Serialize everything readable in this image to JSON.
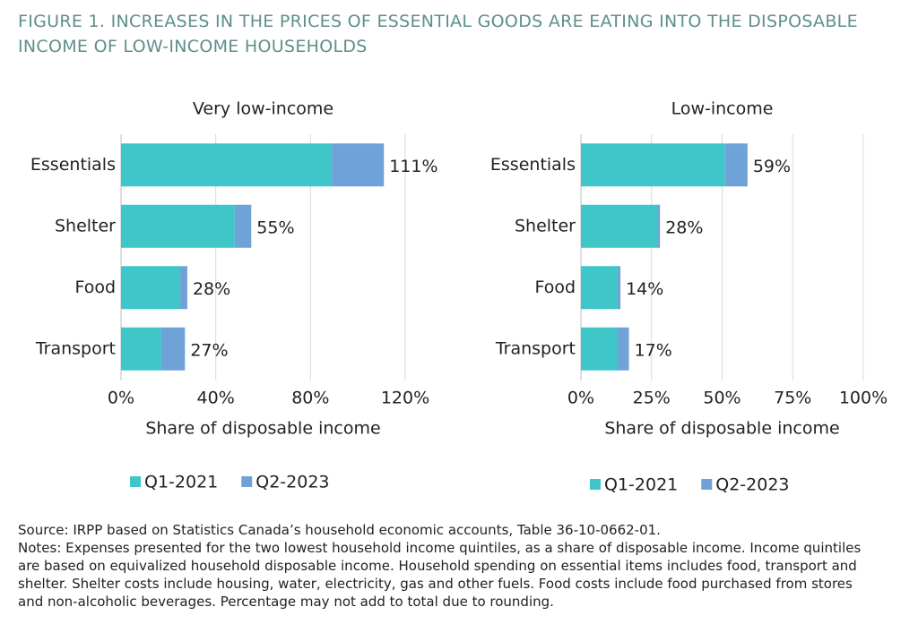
{
  "title": "FIGURE 1. INCREASES IN THE PRICES OF ESSENTIAL GOODS ARE EATING INTO THE DISPOSABLE INCOME OF LOW-INCOME HOUSEHOLDS",
  "chart_data": [
    {
      "type": "stacked-bar-horizontal",
      "title": "Very low-income",
      "categories": [
        "Essentials",
        "Shelter",
        "Food",
        "Transport"
      ],
      "series": [
        {
          "name": "Q1-2021",
          "color": "#3ec6c9",
          "values": [
            89,
            48,
            25,
            17
          ]
        },
        {
          "name": "Q2-2023",
          "color": "#6fa3d8",
          "values": [
            22,
            7,
            3,
            10
          ]
        }
      ],
      "totals": [
        111,
        55,
        28,
        27
      ],
      "total_labels": [
        "111%",
        "55%",
        "28%",
        "27%"
      ],
      "xlim": [
        0,
        120
      ],
      "xticks": [
        {
          "value": 0,
          "label": "0%"
        },
        {
          "value": 40,
          "label": "40%"
        },
        {
          "value": 80,
          "label": "80%"
        },
        {
          "value": 120,
          "label": "120%"
        }
      ],
      "x_label": "Share of disposable income",
      "grid": true
    },
    {
      "type": "stacked-bar-horizontal",
      "title": "Low-income",
      "categories": [
        "Essentials",
        "Shelter",
        "Food",
        "Transport"
      ],
      "series": [
        {
          "name": "Q1-2021",
          "color": "#3ec6c9",
          "values": [
            51,
            27,
            13,
            13
          ]
        },
        {
          "name": "Q2-2023",
          "color": "#6fa3d8",
          "values": [
            8,
            1,
            1,
            4
          ]
        }
      ],
      "totals": [
        59,
        28,
        14,
        17
      ],
      "total_labels": [
        "59%",
        "28%",
        "14%",
        "17%"
      ],
      "xlim": [
        0,
        100
      ],
      "xticks": [
        {
          "value": 0,
          "label": "0%"
        },
        {
          "value": 25,
          "label": "25%"
        },
        {
          "value": 50,
          "label": "50%"
        },
        {
          "value": 75,
          "label": "75%"
        },
        {
          "value": 100,
          "label": "100%"
        }
      ],
      "x_label": "Share of disposable income",
      "grid": true
    }
  ],
  "source": "Source: IRPP based on Statistics Canada’s household economic accounts, Table 36-10-0662-01.",
  "notes": "Notes: Expenses presented for the two lowest household income quintiles, as a share of disposable income. Income quintiles are based on equivalized household disposable income. Household spending on essential items includes food, transport and shelter. Shelter costs include housing, water, electricity, gas and other fuels. Food costs include food purchased from stores and non-alcoholic beverages. Percentage may not add to total due to rounding."
}
